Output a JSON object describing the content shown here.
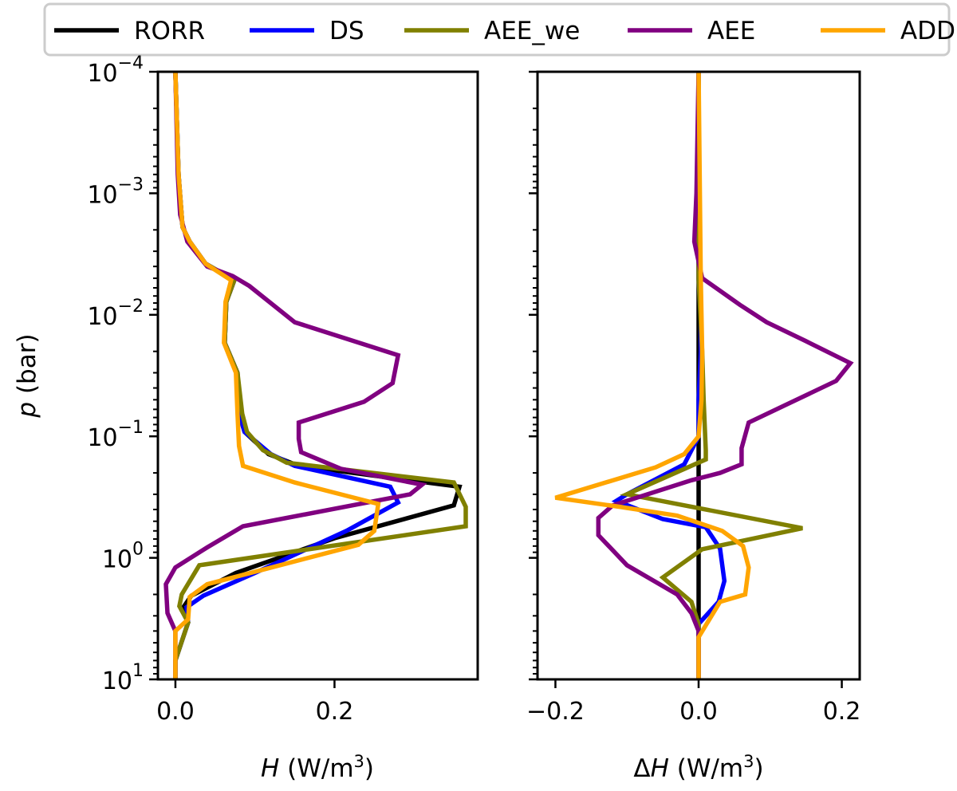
{
  "chart_data": [
    {
      "type": "line",
      "xlabel": "H (W/m³)",
      "xlabel_var": "H",
      "xlabel_rest": " (W/m",
      "xlabel_sup": "3",
      "xlabel_close": ")",
      "ylabel": "p (bar)",
      "ylabel_var": "p",
      "ylabel_rest": " (bar)",
      "yscale": "log",
      "yinverted": true,
      "xlim": [
        -0.022,
        0.38
      ],
      "ylim": [
        0.0001,
        10
      ],
      "xticks": [
        {
          "v": 0.0,
          "label": "0.0"
        },
        {
          "v": 0.2,
          "label": "0.2"
        }
      ],
      "yticks": [
        {
          "exp": -4,
          "label": "10",
          "sup": "−4"
        },
        {
          "exp": -3,
          "label": "10",
          "sup": "−3"
        },
        {
          "exp": -2,
          "label": "10",
          "sup": "−2"
        },
        {
          "exp": -1,
          "label": "10",
          "sup": "−1"
        },
        {
          "exp": 0,
          "label": "10",
          "sup": "0"
        },
        {
          "exp": 1,
          "label": "10",
          "sup": "1"
        }
      ],
      "series": [
        {
          "name": "RORR",
          "color": "#000000",
          "points": [
            [
              0.0,
              0.0001
            ],
            [
              0.004,
              0.0007
            ],
            [
              0.009,
              0.0019
            ],
            [
              0.018,
              0.0025
            ],
            [
              0.038,
              0.0038
            ],
            [
              0.074,
              0.0052
            ],
            [
              0.064,
              0.0078
            ],
            [
              0.062,
              0.017
            ],
            [
              0.078,
              0.03
            ],
            [
              0.08,
              0.065
            ],
            [
              0.087,
              0.092
            ],
            [
              0.117,
              0.14
            ],
            [
              0.155,
              0.175
            ],
            [
              0.357,
              0.26
            ],
            [
              0.35,
              0.37
            ],
            [
              0.2,
              0.69
            ],
            [
              0.076,
              1.33
            ],
            [
              0.02,
              2.05
            ],
            [
              0.01,
              2.55
            ],
            [
              0.016,
              3.4
            ],
            [
              0.0,
              7.0
            ],
            [
              0.0,
              10.0
            ]
          ]
        },
        {
          "name": "DS",
          "color": "#0000ff",
          "points": [
            [
              0.0,
              0.0001
            ],
            [
              0.004,
              0.0007
            ],
            [
              0.009,
              0.0019
            ],
            [
              0.018,
              0.0025
            ],
            [
              0.038,
              0.0038
            ],
            [
              0.074,
              0.0052
            ],
            [
              0.064,
              0.0078
            ],
            [
              0.062,
              0.017
            ],
            [
              0.078,
              0.03
            ],
            [
              0.08,
              0.065
            ],
            [
              0.087,
              0.092
            ],
            [
              0.12,
              0.14
            ],
            [
              0.15,
              0.175
            ],
            [
              0.27,
              0.26
            ],
            [
              0.28,
              0.35
            ],
            [
              0.215,
              0.6
            ],
            [
              0.1,
              1.33
            ],
            [
              0.035,
              2.05
            ],
            [
              0.014,
              2.55
            ],
            [
              0.016,
              3.4
            ],
            [
              0.0,
              7.0
            ],
            [
              0.0,
              10.0
            ]
          ]
        },
        {
          "name": "AEE_we",
          "color": "#808000",
          "points": [
            [
              0.0,
              0.0001
            ],
            [
              0.004,
              0.0007
            ],
            [
              0.009,
              0.0019
            ],
            [
              0.018,
              0.0025
            ],
            [
              0.038,
              0.0038
            ],
            [
              0.074,
              0.0052
            ],
            [
              0.064,
              0.0078
            ],
            [
              0.062,
              0.017
            ],
            [
              0.078,
              0.03
            ],
            [
              0.084,
              0.065
            ],
            [
              0.09,
              0.092
            ],
            [
              0.11,
              0.13
            ],
            [
              0.14,
              0.165
            ],
            [
              0.35,
              0.24
            ],
            [
              0.365,
              0.38
            ],
            [
              0.365,
              0.55
            ],
            [
              0.03,
              1.15
            ],
            [
              0.008,
              2.0
            ],
            [
              0.005,
              2.5
            ],
            [
              0.016,
              3.4
            ],
            [
              0.0,
              7.0
            ],
            [
              0.0,
              10.0
            ]
          ]
        },
        {
          "name": "AEE",
          "color": "#800080",
          "points": [
            [
              0.0,
              0.0001
            ],
            [
              0.003,
              0.0007
            ],
            [
              0.006,
              0.0015
            ],
            [
              0.015,
              0.0025
            ],
            [
              0.04,
              0.004
            ],
            [
              0.072,
              0.0048
            ],
            [
              0.093,
              0.0058
            ],
            [
              0.15,
              0.0115
            ],
            [
              0.28,
              0.0215
            ],
            [
              0.273,
              0.0365
            ],
            [
              0.237,
              0.052
            ],
            [
              0.155,
              0.077
            ],
            [
              0.155,
              0.105
            ],
            [
              0.158,
              0.135
            ],
            [
              0.208,
              0.185
            ],
            [
              0.31,
              0.25
            ],
            [
              0.295,
              0.3
            ],
            [
              0.085,
              0.55
            ],
            [
              0.04,
              0.82
            ],
            [
              0.0,
              1.2
            ],
            [
              -0.012,
              1.65
            ],
            [
              -0.01,
              2.85
            ],
            [
              0.0,
              4.0
            ],
            [
              0.0,
              10.0
            ]
          ]
        },
        {
          "name": "ADD",
          "color": "#ffa500",
          "points": [
            [
              0.0,
              0.0001
            ],
            [
              0.004,
              0.0007
            ],
            [
              0.009,
              0.0019
            ],
            [
              0.018,
              0.0025
            ],
            [
              0.038,
              0.0038
            ],
            [
              0.07,
              0.0052
            ],
            [
              0.063,
              0.0078
            ],
            [
              0.061,
              0.017
            ],
            [
              0.076,
              0.03
            ],
            [
              0.078,
              0.065
            ],
            [
              0.08,
              0.12
            ],
            [
              0.085,
              0.175
            ],
            [
              0.15,
              0.24
            ],
            [
              0.255,
              0.36
            ],
            [
              0.25,
              0.6
            ],
            [
              0.23,
              0.78
            ],
            [
              0.04,
              1.65
            ],
            [
              0.018,
              2.1
            ],
            [
              0.016,
              3.2
            ],
            [
              0.0,
              4.0
            ],
            [
              0.0,
              7.0
            ],
            [
              0.0,
              10.0
            ]
          ]
        }
      ]
    },
    {
      "type": "line",
      "xlabel": "ΔH (W/m³)",
      "xlabel_delta": "Δ",
      "xlabel_var": "H",
      "xlabel_rest": " (W/m",
      "xlabel_sup": "3",
      "xlabel_close": ")",
      "yscale": "log",
      "yinverted": true,
      "xlim": [
        -0.225,
        0.225
      ],
      "ylim": [
        0.0001,
        10
      ],
      "xticks": [
        {
          "v": -0.2,
          "label": "−0.2"
        },
        {
          "v": 0.0,
          "label": "0.0"
        },
        {
          "v": 0.2,
          "label": "0.2"
        }
      ],
      "series": [
        {
          "name": "RORR",
          "color": "#000000",
          "points": [
            [
              0.0,
              0.0001
            ],
            [
              0.0,
              10.0
            ]
          ]
        },
        {
          "name": "DS",
          "color": "#0000ff",
          "points": [
            [
              0.0,
              0.0001
            ],
            [
              0.0,
              0.005
            ],
            [
              0.003,
              0.01
            ],
            [
              0.003,
              0.02
            ],
            [
              0.0,
              0.05
            ],
            [
              0.0,
              0.1
            ],
            [
              -0.02,
              0.17
            ],
            [
              -0.1,
              0.3
            ],
            [
              -0.115,
              0.34
            ],
            [
              -0.05,
              0.48
            ],
            [
              0.01,
              0.56
            ],
            [
              0.03,
              0.84
            ],
            [
              0.036,
              1.55
            ],
            [
              0.028,
              2.3
            ],
            [
              0.0,
              3.5
            ],
            [
              0.0,
              10.0
            ]
          ]
        },
        {
          "name": "AEE_we",
          "color": "#808000",
          "points": [
            [
              0.0,
              0.0001
            ],
            [
              0.0,
              0.005
            ],
            [
              0.005,
              0.02
            ],
            [
              0.007,
              0.05
            ],
            [
              0.01,
              0.13
            ],
            [
              0.01,
              0.155
            ],
            [
              -0.1,
              0.3
            ],
            [
              0.145,
              0.57
            ],
            [
              0.005,
              0.85
            ],
            [
              -0.05,
              1.45
            ],
            [
              -0.01,
              2.3
            ],
            [
              0.0,
              3.5
            ],
            [
              0.0,
              10.0
            ]
          ]
        },
        {
          "name": "AEE",
          "color": "#800080",
          "points": [
            [
              0.0,
              0.0001
            ],
            [
              -0.003,
              0.001
            ],
            [
              -0.006,
              0.0025
            ],
            [
              0.005,
              0.005
            ],
            [
              0.058,
              0.0083
            ],
            [
              0.095,
              0.0115
            ],
            [
              0.15,
              0.0165
            ],
            [
              0.212,
              0.025
            ],
            [
              0.192,
              0.035
            ],
            [
              0.07,
              0.077
            ],
            [
              0.06,
              0.125
            ],
            [
              0.06,
              0.17
            ],
            [
              0.03,
              0.2
            ],
            [
              -0.01,
              0.23
            ],
            [
              -0.12,
              0.37
            ],
            [
              -0.14,
              0.47
            ],
            [
              -0.14,
              0.65
            ],
            [
              -0.1,
              1.15
            ],
            [
              -0.03,
              2.0
            ],
            [
              -0.01,
              2.85
            ],
            [
              0.0,
              4.0
            ],
            [
              0.0,
              10.0
            ]
          ]
        },
        {
          "name": "ADD",
          "color": "#ffa500",
          "points": [
            [
              0.0,
              0.0001
            ],
            [
              0.003,
              0.005
            ],
            [
              0.005,
              0.02
            ],
            [
              0.004,
              0.05
            ],
            [
              0.0,
              0.1
            ],
            [
              -0.02,
              0.14
            ],
            [
              -0.06,
              0.18
            ],
            [
              -0.2,
              0.32
            ],
            [
              -0.11,
              0.38
            ],
            [
              -0.03,
              0.45
            ],
            [
              0.033,
              0.6
            ],
            [
              0.062,
              0.8
            ],
            [
              0.07,
              1.2
            ],
            [
              0.065,
              2.0
            ],
            [
              0.03,
              2.3
            ],
            [
              0.0,
              4.5
            ],
            [
              0.0,
              10.0
            ]
          ]
        }
      ]
    }
  ],
  "legend": {
    "position": "top",
    "items": [
      {
        "label": "RORR",
        "color": "#000000"
      },
      {
        "label": "DS",
        "color": "#0000ff"
      },
      {
        "label": "AEE_we",
        "color": "#808000"
      },
      {
        "label": "AEE",
        "color": "#800080"
      },
      {
        "label": "ADD",
        "color": "#ffa500"
      }
    ]
  }
}
